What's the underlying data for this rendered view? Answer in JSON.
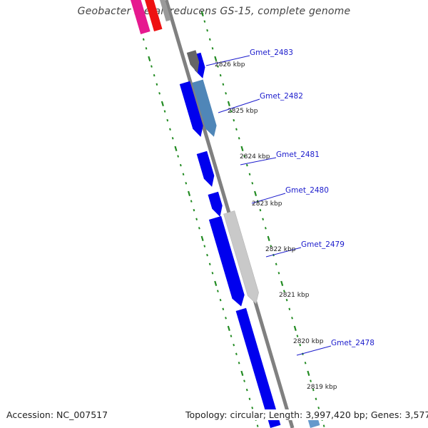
{
  "title": "Geobacter metallireducens GS-15, complete genome",
  "footer": {
    "accession": "Accession: NC_007517",
    "stats": "Topology: circular; Length: 3,997,420 bp; Genes: 3,577"
  },
  "colors": {
    "backbone": "#808080",
    "tick": "#228B22",
    "gene_forward": "#0000ee",
    "gene_label": "#1a1acc"
  },
  "kbp_markers": [
    "2826 kbp",
    "2825 kbp",
    "2824 kbp",
    "2823 kbp",
    "2822 kbp",
    "2821 kbp",
    "2820 kbp",
    "2819 kbp"
  ],
  "genes": [
    "Gmet_2483",
    "Gmet_2482",
    "Gmet_2481",
    "Gmet_2480",
    "Gmet_2479",
    "Gmet_2478"
  ]
}
